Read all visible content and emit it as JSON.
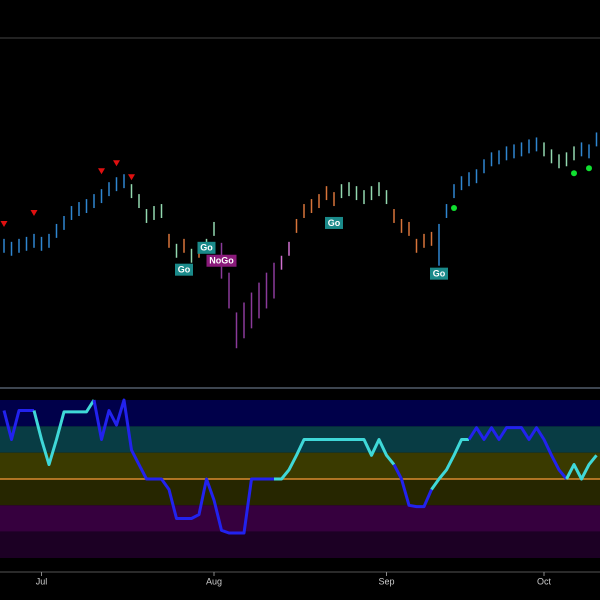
{
  "chart_data": [
    {
      "type": "range",
      "highs": [
        150,
        147,
        150,
        152,
        155,
        152,
        155,
        165,
        173,
        183,
        187,
        190,
        195,
        200,
        207,
        212,
        215,
        205,
        195,
        180,
        183,
        185,
        155,
        145,
        150,
        140,
        145,
        150,
        167,
        146,
        116,
        76,
        86,
        96,
        106,
        116,
        126,
        133,
        147,
        170,
        185,
        190,
        195,
        203,
        197,
        205,
        207,
        203,
        199,
        203,
        207,
        199,
        180,
        170,
        167,
        150,
        155,
        157,
        165,
        185,
        205,
        213,
        217,
        220,
        230,
        237,
        239,
        243,
        245,
        247,
        250,
        252,
        247,
        240,
        235,
        237,
        243,
        247,
        245,
        257
      ],
      "lows": [
        136,
        133,
        136,
        138,
        141,
        138,
        141,
        151,
        159,
        169,
        173,
        176,
        181,
        186,
        193,
        198,
        201,
        191,
        181,
        166,
        169,
        171,
        141,
        131,
        136,
        126,
        131,
        136,
        153,
        110,
        80,
        40,
        50,
        60,
        70,
        80,
        90,
        119,
        133,
        156,
        171,
        176,
        181,
        189,
        183,
        191,
        193,
        189,
        185,
        189,
        193,
        185,
        166,
        156,
        153,
        136,
        141,
        143,
        123,
        171,
        191,
        199,
        203,
        206,
        216,
        223,
        225,
        229,
        231,
        233,
        236,
        238,
        233,
        226,
        221,
        223,
        229,
        233,
        231,
        243
      ],
      "colors": [
        "#2f86d1",
        "#2f86d1",
        "#2f86d1",
        "#2f86d1",
        "#2f86d1",
        "#2f86d1",
        "#2f86d1",
        "#2f86d1",
        "#2f86d1",
        "#2f86d1",
        "#2f86d1",
        "#2f86d1",
        "#2f86d1",
        "#2f86d1",
        "#2f86d1",
        "#2f86d1",
        "#2f86d1",
        "#93d9b0",
        "#93d9b0",
        "#93d9b0",
        "#93d9b0",
        "#93d9b0",
        "#d8743a",
        "#93d9b0",
        "#d8743a",
        "#93d9b0",
        "#d8743a",
        "#93d9b0",
        "#93d9b0",
        "#8a3a9a",
        "#8a3a9a",
        "#8a3a9a",
        "#8a3a9a",
        "#8a3a9a",
        "#8a3a9a",
        "#8a3a9a",
        "#8a3a9a",
        "#d070d0",
        "#d070d0",
        "#d8743a",
        "#d8743a",
        "#d8743a",
        "#d8743a",
        "#d8743a",
        "#d8743a",
        "#93d9b0",
        "#93d9b0",
        "#93d9b0",
        "#93d9b0",
        "#93d9b0",
        "#93d9b0",
        "#93d9b0",
        "#d8743a",
        "#d8743a",
        "#d8743a",
        "#d8743a",
        "#d8743a",
        "#d8743a",
        "#2f86d1",
        "#2f86d1",
        "#2f86d1",
        "#2f86d1",
        "#2f86d1",
        "#2f86d1",
        "#2f86d1",
        "#2f86d1",
        "#2f86d1",
        "#2f86d1",
        "#2f86d1",
        "#2f86d1",
        "#2f86d1",
        "#2f86d1",
        "#93d9b0",
        "#93d9b0",
        "#93d9b0",
        "#93d9b0",
        "#93d9b0",
        "#2f86d1",
        "#2f86d1",
        "#2f86d1"
      ],
      "ylim": [
        0,
        350
      ],
      "markers": [
        {
          "shape": "down",
          "color": "#e01010",
          "at": [
            0,
            4,
            13,
            15,
            17
          ],
          "values": [
            165,
            176,
            218,
            226,
            212
          ]
        },
        {
          "shape": "dot",
          "color": "#10e030",
          "at": [
            60,
            76,
            78
          ],
          "values": [
            181,
            216,
            221
          ]
        }
      ],
      "annotations": [
        {
          "text": "Go",
          "at": 24,
          "value": 119,
          "color": "#1a8a8a"
        },
        {
          "text": "Go",
          "at": 27,
          "value": 141,
          "color": "#1a8a8a"
        },
        {
          "text": "NoGo",
          "at": 29,
          "value": 128,
          "color": "#8a1a7a"
        },
        {
          "text": "Go",
          "at": 44,
          "value": 166,
          "color": "#1a8a8a"
        },
        {
          "text": "Go",
          "at": 58,
          "value": 115,
          "color": "#1a8a8a"
        }
      ]
    },
    {
      "type": "line",
      "categories": [
        null,
        null,
        null,
        null,
        null,
        "Jul",
        null,
        null,
        null,
        null,
        null,
        null,
        null,
        null,
        null,
        null,
        null,
        null,
        null,
        null,
        null,
        null,
        null,
        null,
        null,
        null,
        null,
        null,
        "Aug",
        null,
        null,
        null,
        null,
        null,
        null,
        null,
        null,
        null,
        null,
        null,
        null,
        null,
        null,
        null,
        null,
        null,
        null,
        null,
        null,
        null,
        null,
        "Sep",
        null,
        null,
        null,
        null,
        null,
        null,
        null,
        null,
        null,
        null,
        null,
        null,
        null,
        null,
        null,
        null,
        null,
        null,
        null,
        null,
        "Oct",
        null,
        null,
        null,
        null,
        null,
        null,
        null
      ],
      "values": [
        5.2,
        3.0,
        5.2,
        5.2,
        5.2,
        3.0,
        1.1,
        3.0,
        5.1,
        5.1,
        5.1,
        5.1,
        6.0,
        3.0,
        5.2,
        4.1,
        6.0,
        2.2,
        1.1,
        0,
        0,
        0,
        -0.8,
        -3.0,
        -3.0,
        -3.0,
        -2.7,
        0,
        -1.6,
        -3.9,
        -4.1,
        -4.1,
        -4.1,
        0,
        0,
        0,
        0,
        0,
        0.7,
        1.8,
        3.0,
        3.0,
        3.0,
        3.0,
        3.0,
        3.0,
        3.0,
        3.0,
        3.0,
        1.8,
        3.0,
        1.8,
        1.1,
        0,
        -2.0,
        -2.1,
        -2.1,
        -0.8,
        0,
        0.7,
        1.8,
        3.0,
        3.0,
        3.9,
        3.0,
        3.9,
        3.0,
        3.9,
        3.9,
        3.9,
        3.0,
        3.9,
        3.0,
        1.8,
        0.7,
        0,
        1.1,
        0,
        1.1,
        1.8
      ],
      "colors": [
        "#2222ee",
        "#2222ee",
        "#2222ee",
        "#2222ee",
        "#2222ee",
        "#3fd8d8",
        "#3fd8d8",
        "#3fd8d8",
        "#3fd8d8",
        "#3fd8d8",
        "#3fd8d8",
        "#3fd8d8",
        "#3fd8d8",
        "#2222ee",
        "#2222ee",
        "#2222ee",
        "#2222ee",
        "#2222ee",
        "#2222ee",
        "#2222ee",
        "#2222ee",
        "#2222ee",
        "#2222ee",
        "#2222ee",
        "#2222ee",
        "#2222ee",
        "#2222ee",
        "#2222ee",
        "#2222ee",
        "#2222ee",
        "#2222ee",
        "#2222ee",
        "#2222ee",
        "#2222ee",
        "#2222ee",
        "#2222ee",
        "#2222ee",
        "#3fd8d8",
        "#3fd8d8",
        "#3fd8d8",
        "#3fd8d8",
        "#3fd8d8",
        "#3fd8d8",
        "#3fd8d8",
        "#3fd8d8",
        "#3fd8d8",
        "#3fd8d8",
        "#3fd8d8",
        "#3fd8d8",
        "#3fd8d8",
        "#3fd8d8",
        "#3fd8d8",
        "#3fd8d8",
        "#2222ee",
        "#2222ee",
        "#2222ee",
        "#2222ee",
        "#2222ee",
        "#3fd8d8",
        "#3fd8d8",
        "#3fd8d8",
        "#3fd8d8",
        "#3fd8d8",
        "#2222ee",
        "#2222ee",
        "#2222ee",
        "#2222ee",
        "#2222ee",
        "#2222ee",
        "#2222ee",
        "#2222ee",
        "#2222ee",
        "#2222ee",
        "#2222ee",
        "#2222ee",
        "#2222ee",
        "#3fd8d8",
        "#3fd8d8",
        "#3fd8d8",
        "#3fd8d8"
      ],
      "ylim": [
        -6,
        6
      ],
      "hline": {
        "value": 0,
        "color": "#d88a30"
      },
      "bands": [
        {
          "from": 4,
          "to": 6,
          "color": "#00004a"
        },
        {
          "from": 2,
          "to": 4,
          "color": "#083c44"
        },
        {
          "from": 0,
          "to": 2,
          "color": "#3a3a00"
        },
        {
          "from": -2,
          "to": 0,
          "color": "#262600"
        },
        {
          "from": -4,
          "to": -2,
          "color": "#36003e"
        },
        {
          "from": -6,
          "to": -4,
          "color": "#1c0024"
        }
      ]
    }
  ]
}
